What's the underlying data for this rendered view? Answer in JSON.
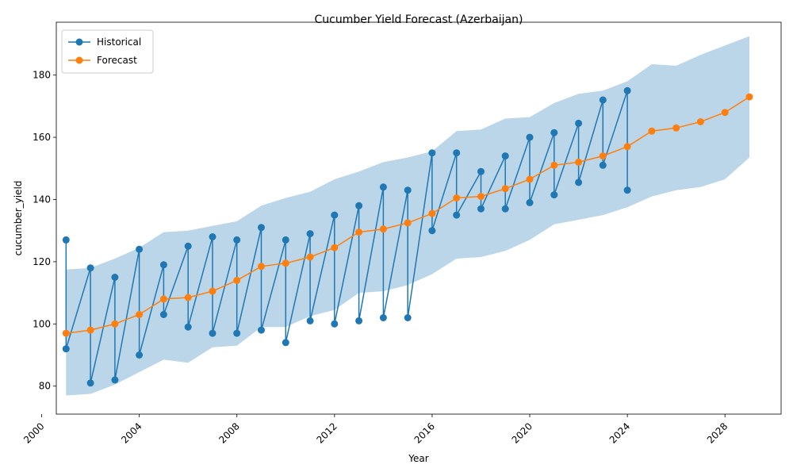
{
  "chart_data": {
    "type": "line",
    "title": "Cucumber Yield Forecast (Azerbaijan)",
    "xlabel": "Year",
    "ylabel": "cucumber_yield",
    "xlim": [
      2000.6,
      2030.3
    ],
    "ylim": [
      71,
      197
    ],
    "xticks": [
      2000,
      2004,
      2008,
      2012,
      2016,
      2020,
      2024,
      2028
    ],
    "yticks": [
      80,
      100,
      120,
      140,
      160,
      180
    ],
    "legend_position": "upper-left",
    "series": [
      {
        "name": "Historical",
        "color": "#1f77b4",
        "x": [
          2001,
          2001,
          2002,
          2002,
          2003,
          2003,
          2004,
          2004,
          2005,
          2005,
          2006,
          2006,
          2007,
          2007,
          2008,
          2008,
          2009,
          2009,
          2010,
          2010,
          2011,
          2011,
          2012,
          2012,
          2013,
          2013,
          2014,
          2014,
          2015,
          2015,
          2016,
          2016,
          2017,
          2017,
          2018,
          2018,
          2019,
          2019,
          2020,
          2020,
          2021,
          2021,
          2022,
          2022,
          2023,
          2023,
          2024,
          2024
        ],
        "y": [
          127,
          92,
          118,
          81,
          115,
          82,
          124,
          90,
          119,
          103,
          125,
          99,
          128,
          97,
          127,
          97,
          131,
          98,
          127,
          94,
          129,
          101,
          135,
          100,
          138,
          101,
          144,
          102,
          143,
          102,
          155,
          130,
          155,
          135,
          149,
          137,
          154,
          137,
          160,
          139,
          161.5,
          141.5,
          164.5,
          145.5,
          172,
          151,
          175,
          143
        ]
      },
      {
        "name": "Forecast",
        "color": "#ff7f0e",
        "x": [
          2001,
          2002,
          2003,
          2004,
          2005,
          2006,
          2007,
          2008,
          2009,
          2010,
          2011,
          2012,
          2013,
          2014,
          2015,
          2016,
          2017,
          2018,
          2019,
          2020,
          2021,
          2022,
          2023,
          2024,
          2025,
          2026,
          2027,
          2028,
          2029
        ],
        "y": [
          97,
          98,
          100,
          103,
          108,
          108.5,
          110.5,
          114,
          118.5,
          119.5,
          121.5,
          124.5,
          129.5,
          130.5,
          132.5,
          135.5,
          140.5,
          141,
          143.5,
          146.5,
          151,
          152,
          154,
          157,
          162,
          163,
          165,
          168,
          173
        ]
      }
    ],
    "confidence_band": {
      "color": "#1f77b4",
      "x": [
        2001,
        2002,
        2003,
        2004,
        2005,
        2006,
        2007,
        2008,
        2009,
        2010,
        2011,
        2012,
        2013,
        2014,
        2015,
        2016,
        2017,
        2018,
        2019,
        2020,
        2021,
        2022,
        2023,
        2024,
        2025,
        2026,
        2027,
        2028,
        2029
      ],
      "upper": [
        117.5,
        118,
        121,
        124.5,
        129.5,
        130,
        131.5,
        133,
        138,
        140.5,
        142.5,
        146.5,
        149,
        152,
        153.5,
        155.5,
        162,
        162.5,
        166,
        166.5,
        171,
        174,
        175,
        178,
        183.5,
        183,
        186.5,
        189.5,
        192.5
      ],
      "lower": [
        77,
        77.5,
        80.5,
        84.5,
        88.5,
        87.5,
        92.5,
        93,
        99,
        99,
        102.5,
        104.5,
        110,
        110.5,
        112.5,
        116,
        121,
        121.5,
        123.5,
        127,
        132,
        133.5,
        135,
        137.5,
        141,
        143,
        144,
        146.5,
        153.5
      ]
    }
  }
}
